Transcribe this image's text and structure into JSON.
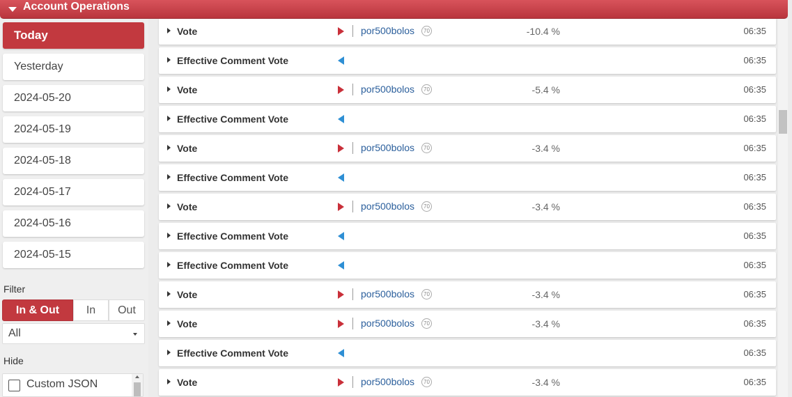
{
  "header": {
    "title": "Account Operations"
  },
  "sidebar": {
    "days": [
      "Today",
      "Yesterday",
      "2024-05-20",
      "2024-05-19",
      "2024-05-18",
      "2024-05-17",
      "2024-05-16",
      "2024-05-15"
    ],
    "filter_label": "Filter",
    "filter_tabs": [
      "In & Out",
      "In",
      "Out"
    ],
    "type_select_value": "All",
    "hide_label": "Hide",
    "hide_options": [
      "Custom JSON"
    ]
  },
  "operations": [
    {
      "op": "Vote",
      "dir": "out",
      "user": "por500bolos",
      "rep": "70",
      "pct": "-10.4 %",
      "time": "06:35"
    },
    {
      "op": "Effective Comment Vote",
      "dir": "in",
      "time": "06:35"
    },
    {
      "op": "Vote",
      "dir": "out",
      "user": "por500bolos",
      "rep": "70",
      "pct": "-5.4 %",
      "time": "06:35"
    },
    {
      "op": "Effective Comment Vote",
      "dir": "in",
      "time": "06:35"
    },
    {
      "op": "Vote",
      "dir": "out",
      "user": "por500bolos",
      "rep": "70",
      "pct": "-3.4 %",
      "time": "06:35"
    },
    {
      "op": "Effective Comment Vote",
      "dir": "in",
      "time": "06:35"
    },
    {
      "op": "Vote",
      "dir": "out",
      "user": "por500bolos",
      "rep": "70",
      "pct": "-3.4 %",
      "time": "06:35"
    },
    {
      "op": "Effective Comment Vote",
      "dir": "in",
      "time": "06:35"
    },
    {
      "op": "Effective Comment Vote",
      "dir": "in",
      "time": "06:35"
    },
    {
      "op": "Vote",
      "dir": "out",
      "user": "por500bolos",
      "rep": "70",
      "pct": "-3.4 %",
      "time": "06:35"
    },
    {
      "op": "Vote",
      "dir": "out",
      "user": "por500bolos",
      "rep": "70",
      "pct": "-3.4 %",
      "time": "06:35"
    },
    {
      "op": "Effective Comment Vote",
      "dir": "in",
      "time": "06:35"
    },
    {
      "op": "Vote",
      "dir": "out",
      "user": "por500bolos",
      "rep": "70",
      "pct": "-3.4 %",
      "time": "06:35"
    }
  ],
  "colors": {
    "accent": "#c2393f",
    "out_arrow": "#c9303a",
    "in_arrow": "#2e8fd4",
    "link": "#2b5f9c"
  }
}
